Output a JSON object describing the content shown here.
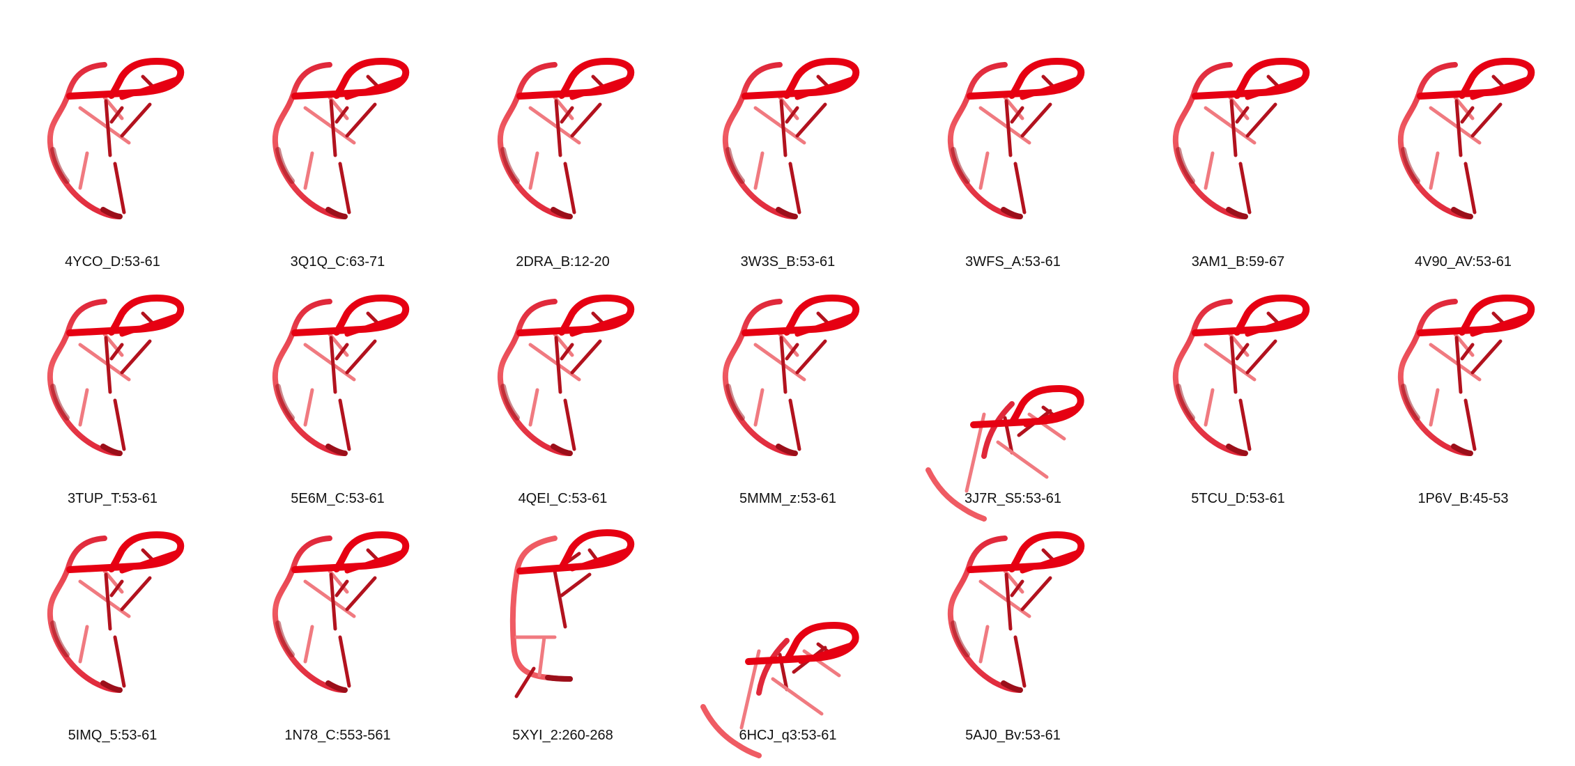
{
  "colors": {
    "backbone_light": "#ef5b63",
    "backbone_mid": "#e0283a",
    "backbone_dark": "#9b0f1a",
    "loop": "#e60012",
    "stick": "#b2121e",
    "stick_light": "#f07a80",
    "background": "#ffffff"
  },
  "structures": [
    {
      "label": "4YCO_D:53-61",
      "variant": "standard"
    },
    {
      "label": "3Q1Q_C:63-71",
      "variant": "standard"
    },
    {
      "label": "2DRA_B:12-20",
      "variant": "standard"
    },
    {
      "label": "3W3S_B:53-61",
      "variant": "standard"
    },
    {
      "label": "3WFS_A:53-61",
      "variant": "standard"
    },
    {
      "label": "3AM1_B:59-67",
      "variant": "standard"
    },
    {
      "label": "4V90_AV:53-61",
      "variant": "standard"
    },
    {
      "label": "3TUP_T:53-61",
      "variant": "standard"
    },
    {
      "label": "5E6M_C:53-61",
      "variant": "standard"
    },
    {
      "label": "4QEI_C:53-61",
      "variant": "standard"
    },
    {
      "label": "5MMM_z:53-61",
      "variant": "standard"
    },
    {
      "label": "3J7R_S5:53-61",
      "variant": "open"
    },
    {
      "label": "5TCU_D:53-61",
      "variant": "standard"
    },
    {
      "label": "1P6V_B:45-53",
      "variant": "standard"
    },
    {
      "label": "5IMQ_5:53-61",
      "variant": "standard"
    },
    {
      "label": "1N78_C:553-561",
      "variant": "standard"
    },
    {
      "label": "5XYI_2:260-268",
      "variant": "wide"
    },
    {
      "label": "6HCJ_q3:53-61",
      "variant": "open"
    },
    {
      "label": "5AJ0_Bv:53-61",
      "variant": "standard"
    }
  ]
}
